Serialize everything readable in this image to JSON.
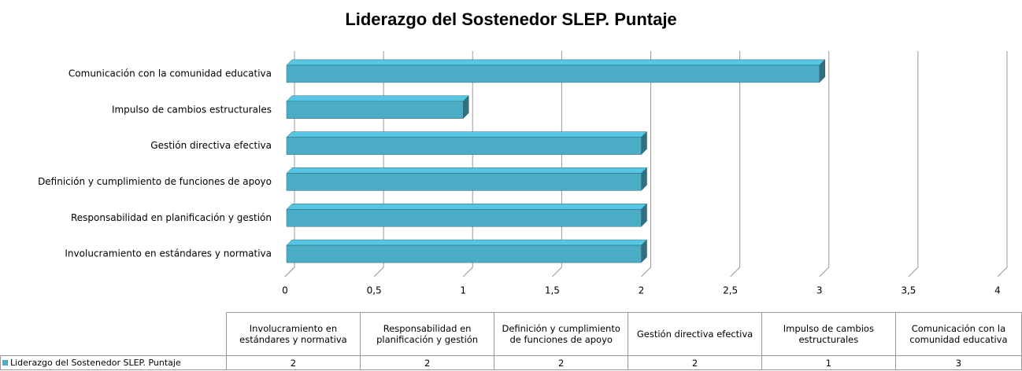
{
  "chart_data": {
    "type": "bar3d_horizontal",
    "title": "Liderazgo del Sostenedor SLEP. Puntaje",
    "categories": [
      "Involucramiento en estándares y normativa",
      "Responsabilidad en planificación y gestión",
      "Definición y cumplimiento de funciones de apoyo",
      "Gestión directiva efectiva",
      "Impulso de cambios estructurales",
      "Comunicación con la comunidad educativa"
    ],
    "series": [
      {
        "name": "Liderazgo del Sostenedor SLEP. Puntaje",
        "color": "#4bacc6",
        "values": [
          2,
          2,
          2,
          2,
          1,
          3
        ]
      }
    ],
    "xlim": [
      0,
      4
    ],
    "xticks": [
      0,
      {
        "value": 0.5,
        "label": "0,5"
      },
      1,
      {
        "value": 1.5,
        "label": "1,5"
      },
      2,
      {
        "value": 2.5,
        "label": "2,5"
      },
      3,
      {
        "value": 3.5,
        "label": "3,5"
      },
      4
    ],
    "grid": true
  }
}
